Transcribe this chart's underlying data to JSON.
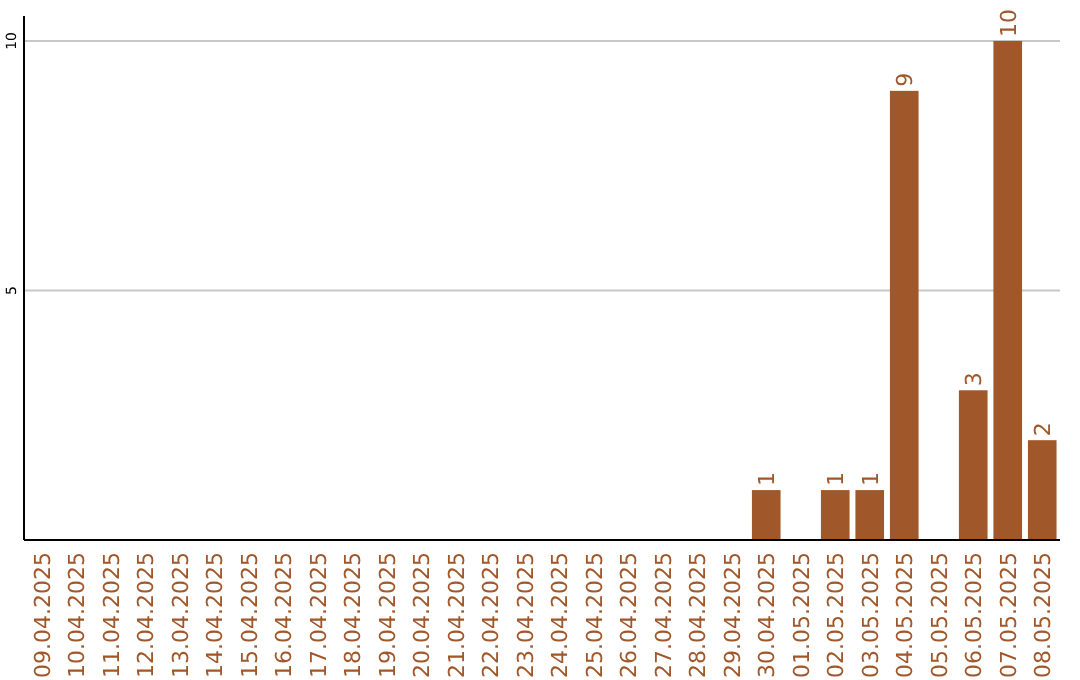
{
  "chart_data": {
    "type": "bar",
    "categories": [
      "09.04.2025",
      "10.04.2025",
      "11.04.2025",
      "12.04.2025",
      "13.04.2025",
      "14.04.2025",
      "15.04.2025",
      "16.04.2025",
      "17.04.2025",
      "18.04.2025",
      "19.04.2025",
      "20.04.2025",
      "21.04.2025",
      "22.04.2025",
      "23.04.2025",
      "24.04.2025",
      "25.04.2025",
      "26.04.2025",
      "27.04.2025",
      "28.04.2025",
      "29.04.2025",
      "30.04.2025",
      "01.05.2025",
      "02.05.2025",
      "03.05.2025",
      "04.05.2025",
      "05.05.2025",
      "06.05.2025",
      "07.05.2025",
      "08.05.2025"
    ],
    "values": [
      0,
      0,
      0,
      0,
      0,
      0,
      0,
      0,
      0,
      0,
      0,
      0,
      0,
      0,
      0,
      0,
      0,
      0,
      0,
      0,
      0,
      1,
      0,
      1,
      1,
      9,
      0,
      3,
      10,
      2
    ],
    "value_labels": [
      null,
      null,
      null,
      null,
      null,
      null,
      null,
      null,
      null,
      null,
      null,
      null,
      null,
      null,
      null,
      null,
      null,
      null,
      null,
      null,
      null,
      "1",
      null,
      "1",
      "1",
      "9",
      null,
      "3",
      "10",
      "2"
    ],
    "color": "#a0572a",
    "ylim": [
      0,
      10.5
    ],
    "yticks": [
      {
        "value": 0,
        "label": null
      },
      5,
      10
    ],
    "grid": "y"
  }
}
